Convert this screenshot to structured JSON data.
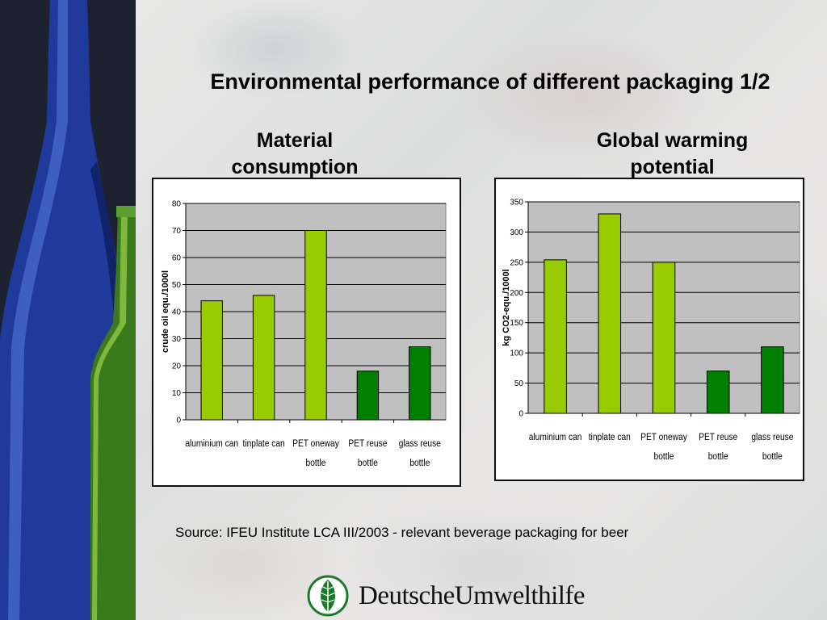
{
  "slide": {
    "title": "Environmental performance of different packaging 1/2",
    "source": "Source: IFEU Institute LCA III/2003 - relevant beverage packaging for beer",
    "logo_text": "DeutscheUmwelthilfe"
  },
  "colors": {
    "plot_bg": "#c0c0c0",
    "light_green": "#99cc00",
    "dark_green": "#008000",
    "bar_border": "#000000"
  },
  "chart_data": [
    {
      "type": "bar",
      "title": "Material consumption",
      "title_lines": [
        "Material",
        "consumption"
      ],
      "ylabel": "crude oil equ./1000l",
      "ylim": [
        0,
        80
      ],
      "yticks": [
        0,
        10,
        20,
        30,
        40,
        50,
        60,
        70,
        80
      ],
      "categories": [
        [
          "aluminium can"
        ],
        [
          "tinplate can"
        ],
        [
          "PET oneway",
          "bottle"
        ],
        [
          "PET reuse",
          "bottle"
        ],
        [
          "glass reuse",
          "bottle"
        ]
      ],
      "values": [
        44,
        46,
        70,
        18,
        27
      ],
      "bar_colors": [
        "#99cc00",
        "#99cc00",
        "#99cc00",
        "#008000",
        "#008000"
      ],
      "grid": true
    },
    {
      "type": "bar",
      "title": "Global warming potential",
      "title_lines": [
        "Global warming",
        "potential"
      ],
      "ylabel": "kg CO2-equ./1000l",
      "ylim": [
        0,
        350
      ],
      "yticks": [
        0,
        50,
        100,
        150,
        200,
        250,
        300,
        350
      ],
      "categories": [
        [
          "aluminium can"
        ],
        [
          "tinplate can"
        ],
        [
          "PET oneway",
          "bottle"
        ],
        [
          "PET reuse",
          "bottle"
        ],
        [
          "glass reuse",
          "bottle"
        ]
      ],
      "values": [
        254,
        330,
        250,
        70,
        110
      ],
      "bar_colors": [
        "#99cc00",
        "#99cc00",
        "#99cc00",
        "#008000",
        "#008000"
      ],
      "grid": true
    }
  ]
}
